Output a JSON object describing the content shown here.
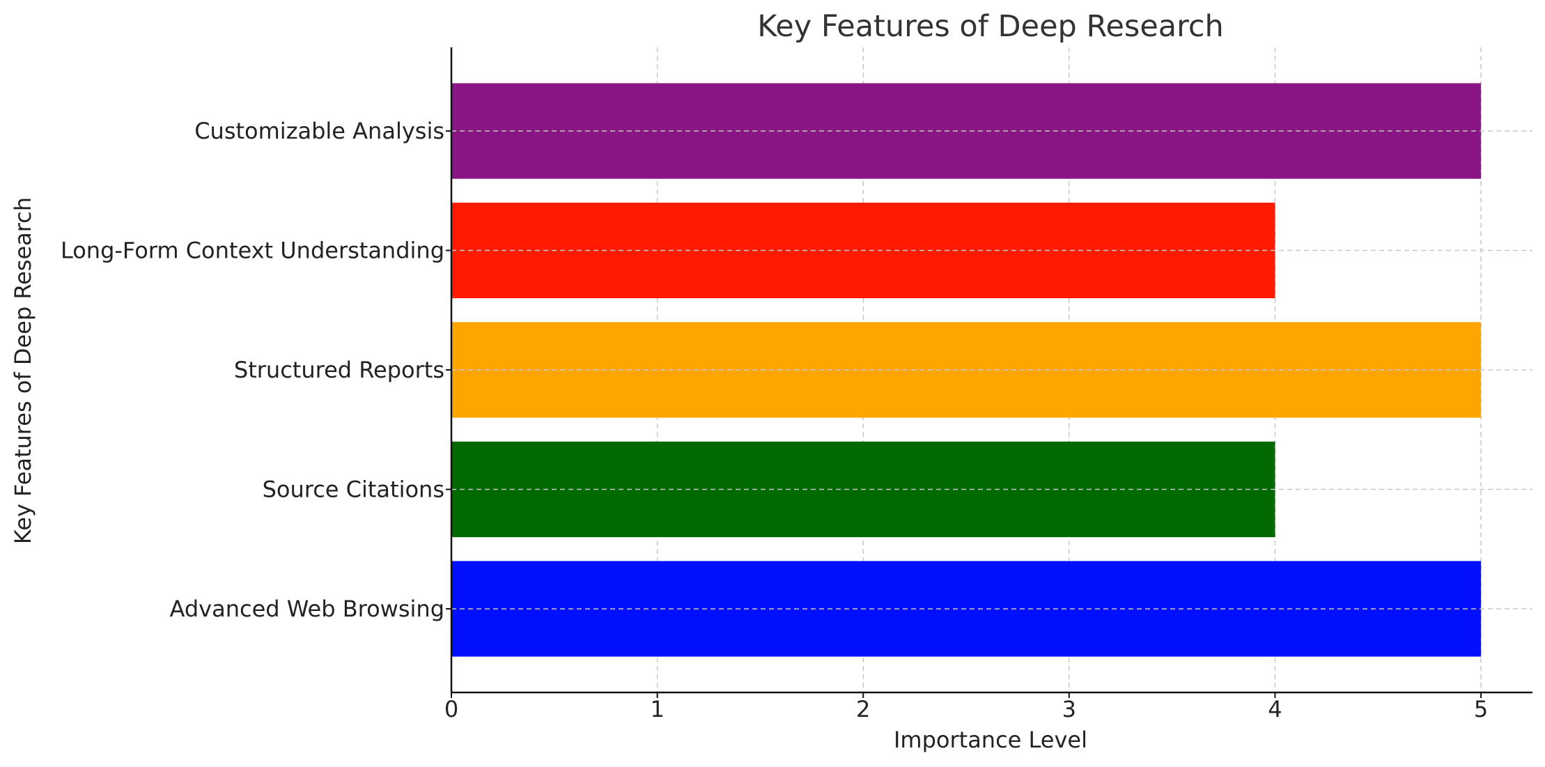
{
  "chart_data": {
    "type": "bar",
    "orientation": "horizontal",
    "title": "Key Features of Deep Research",
    "xlabel": "Importance Level",
    "ylabel": "Key Features of Deep Research",
    "categories": [
      "Advanced Web Browsing",
      "Source Citations",
      "Structured Reports",
      "Long-Form Context Understanding",
      "Customizable Analysis"
    ],
    "values": [
      5,
      4,
      5,
      4,
      5
    ],
    "colors": [
      "#0010ff",
      "#006a00",
      "#ffa500",
      "#ff1a00",
      "#8a1584"
    ],
    "xlim": [
      0,
      5.25
    ],
    "xticks": [
      "0",
      "1",
      "2",
      "3",
      "4",
      "5"
    ],
    "grid": true
  }
}
